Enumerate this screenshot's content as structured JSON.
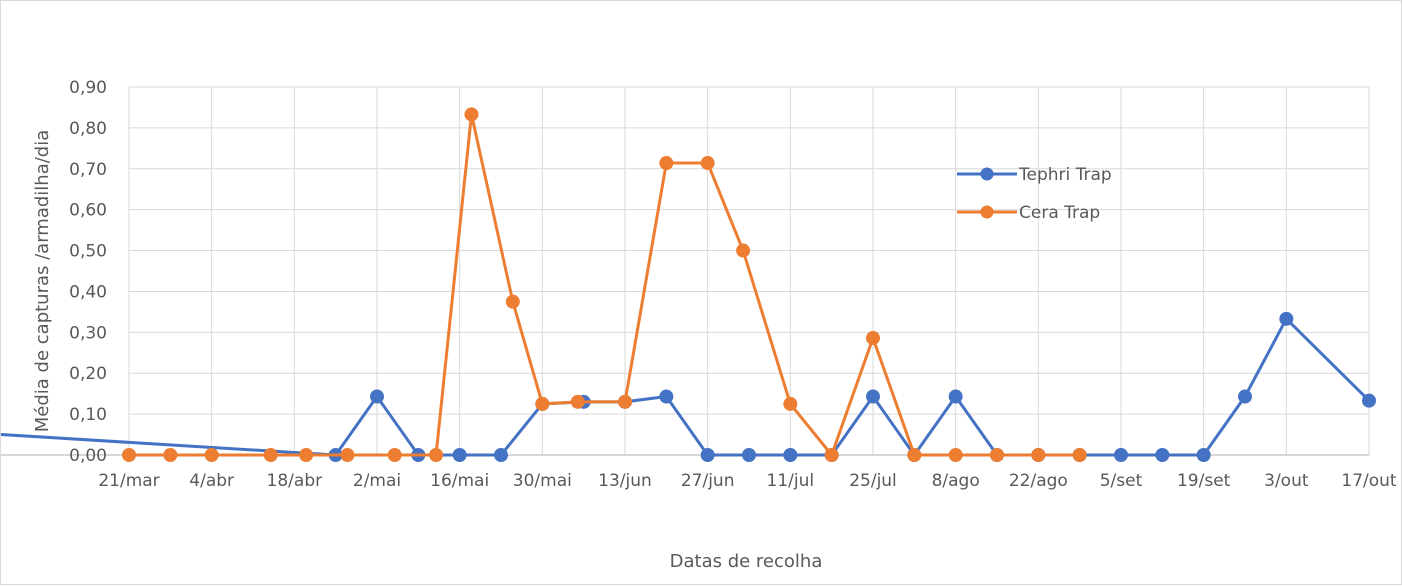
{
  "chart_data": {
    "type": "line",
    "title": "",
    "xlabel": "Datas de recolha",
    "ylabel": "Média de capturas /armadilha/dia",
    "categories": [
      "21/mar",
      "4/abr",
      "18/abr",
      "2/mai",
      "16/mai",
      "30/mai",
      "13/jun",
      "27/jun",
      "11/jul",
      "25/jul",
      "8/ago",
      "22/ago",
      "5/set",
      "19/set",
      "3/out",
      "17/out"
    ],
    "x_range_days": [
      0,
      210
    ],
    "y_ticks": [
      "0,00",
      "0,10",
      "0,20",
      "0,30",
      "0,40",
      "0,50",
      "0,60",
      "0,70",
      "0,80",
      "0,90"
    ],
    "ylim": [
      0,
      0.9
    ],
    "grid": true,
    "legend_position": "right",
    "series": [
      {
        "name": "Tephri Trap",
        "color": "#4472C4",
        "x": [
          "2021-03-18",
          "2021-04-25",
          "2021-05-02",
          "2021-05-09",
          "2021-05-16",
          "2021-05-23",
          "2021-05-30",
          "2021-06-06",
          "2021-06-13",
          "2021-06-20",
          "2021-06-27",
          "2021-07-04",
          "2021-07-11",
          "2021-07-18",
          "2021-07-25",
          "2021-08-01",
          "2021-08-08",
          "2021-08-15",
          "2021-08-22",
          "2021-08-29",
          "2021-09-05",
          "2021-09-12",
          "2021-09-19",
          "2021-09-26",
          "2021-10-03",
          "2021-10-17"
        ],
        "values": [
          0.05,
          0,
          0.143,
          0,
          0,
          0,
          0.125,
          0.13,
          0.13,
          0.143,
          0,
          0,
          0,
          0,
          0.143,
          0,
          0.143,
          0,
          0,
          0,
          0,
          0,
          0,
          0.143,
          0.333,
          0.133
        ]
      },
      {
        "name": "Cera Trap",
        "color": "#ED7D31",
        "x": [
          "2021-03-21",
          "2021-03-28",
          "2021-04-04",
          "2021-04-14",
          "2021-04-20",
          "2021-04-27",
          "2021-05-05",
          "2021-05-12",
          "2021-05-18",
          "2021-05-25",
          "2021-05-30",
          "2021-06-05",
          "2021-06-13",
          "2021-06-20",
          "2021-06-27",
          "2021-07-03",
          "2021-07-11",
          "2021-07-18",
          "2021-07-25",
          "2021-08-01",
          "2021-08-08",
          "2021-08-15",
          "2021-08-22",
          "2021-08-29"
        ],
        "values": [
          0,
          0,
          0,
          0,
          0,
          0,
          0,
          0,
          0.833,
          0.375,
          0.125,
          0.13,
          0.13,
          0.714,
          0.714,
          0.5,
          0.125,
          0,
          0.286,
          0,
          0,
          0,
          0,
          0
        ]
      }
    ]
  }
}
